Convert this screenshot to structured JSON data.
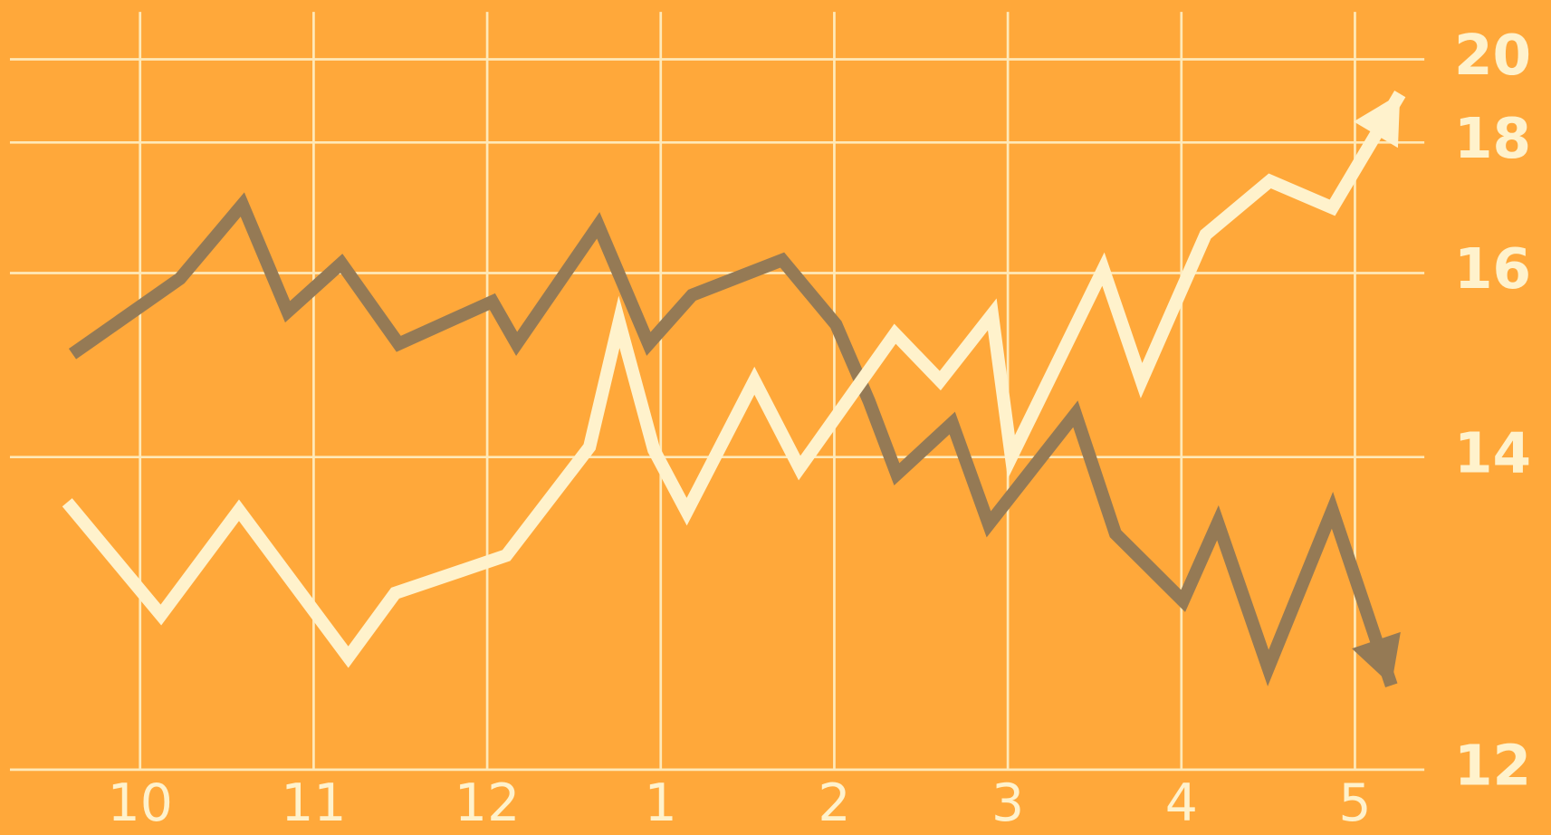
{
  "chart_data": {
    "type": "line",
    "xticks": [
      {
        "value": 0,
        "label": "10"
      },
      {
        "value": 1,
        "label": "11"
      },
      {
        "value": 2,
        "label": "12"
      },
      {
        "value": 3,
        "label": "1"
      },
      {
        "value": 4,
        "label": "2"
      },
      {
        "value": 5,
        "label": "3"
      },
      {
        "value": 6,
        "label": "4"
      },
      {
        "value": 7,
        "label": "5"
      }
    ],
    "xlim": [
      -0.75,
      7.4
    ],
    "ylim": [
      12,
      20
    ],
    "yticks": [
      12,
      14,
      16,
      18,
      20
    ],
    "grid": true,
    "background": "#FFA83A",
    "grid_color": "#FFE9B8",
    "series": [
      {
        "color": "#957A55",
        "x": [
          -0.39,
          0.23,
          0.59,
          0.85,
          1.16,
          1.49,
          2.03,
          2.17,
          2.64,
          2.93,
          3.18,
          3.7,
          4.01,
          4.2,
          4.36,
          4.68,
          4.89,
          5.39,
          5.62,
          6.01,
          6.21,
          6.5,
          6.87,
          7.21
        ],
        "values": [
          15.12,
          15.94,
          17.05,
          15.58,
          16.15,
          15.23,
          15.69,
          15.23,
          16.73,
          15.23,
          15.76,
          16.2,
          15.44,
          14.61,
          13.89,
          14.37,
          13.57,
          14.47,
          13.51,
          13.08,
          13.58,
          12.65,
          13.66,
          12.54
        ]
      },
      {
        "color": "#FFF2CC",
        "x": [
          -0.42,
          0.12,
          0.57,
          1.2,
          1.47,
          2.11,
          2.59,
          2.76,
          2.96,
          3.15,
          3.54,
          3.8,
          4.35,
          4.61,
          4.91,
          5.02,
          5.55,
          5.77,
          6.14,
          6.51,
          6.87,
          7.26
        ],
        "values": [
          13.71,
          12.99,
          13.66,
          12.72,
          13.13,
          13.37,
          14.11,
          15.47,
          14.08,
          13.65,
          14.83,
          13.93,
          15.34,
          14.83,
          15.55,
          14.0,
          16.06,
          14.83,
          16.59,
          17.41,
          17.0,
          19.17
        ]
      }
    ]
  }
}
